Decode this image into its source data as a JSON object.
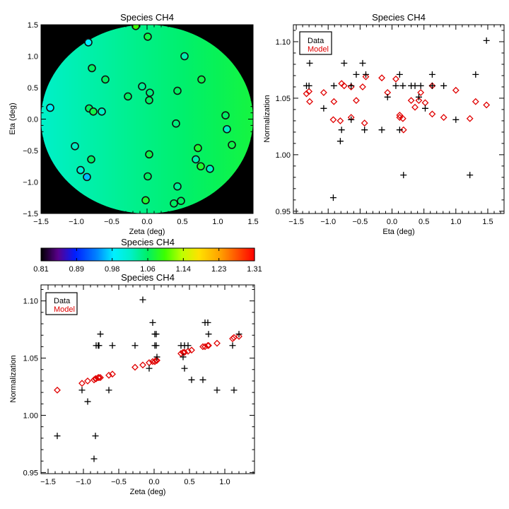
{
  "chart_data": [
    {
      "type": "scatter",
      "id": "map",
      "title": "Species CH4",
      "xlabel": "Zeta (deg)",
      "ylabel": "Eta (deg)",
      "xlim": [
        -1.5,
        1.5
      ],
      "ylim": [
        -1.5,
        1.5
      ],
      "xticks": [
        -1.5,
        -1.0,
        -0.5,
        0.0,
        0.5,
        1.0,
        1.5
      ],
      "yticks": [
        -1.5,
        -1.0,
        -0.5,
        0.0,
        0.5,
        1.0,
        1.5
      ],
      "background": "model surface, field radius 1.5 deg, black outside",
      "points": [
        {
          "zeta": -0.16,
          "eta": 1.48,
          "data": 1.101,
          "model": 1.044
        },
        {
          "zeta": 0.01,
          "eta": 1.31,
          "data": 1.071,
          "model": 1.047
        },
        {
          "zeta": -0.83,
          "eta": 1.22,
          "data": 0.982,
          "model": 1.032
        },
        {
          "zeta": 0.53,
          "eta": 1.0,
          "data": 1.031,
          "model": 1.057
        },
        {
          "zeta": -0.78,
          "eta": 0.81,
          "data": 1.061,
          "model": 1.033
        },
        {
          "zeta": -0.59,
          "eta": 0.63,
          "data": 1.061,
          "model": 1.036
        },
        {
          "zeta": 0.77,
          "eta": 0.63,
          "data": 1.071,
          "model": 1.061
        },
        {
          "zeta": -0.07,
          "eta": 0.52,
          "data": 1.041,
          "model": 1.046
        },
        {
          "zeta": 0.04,
          "eta": 0.42,
          "data": 1.051,
          "model": 1.048
        },
        {
          "zeta": -0.27,
          "eta": 0.36,
          "data": 1.061,
          "model": 1.042
        },
        {
          "zeta": 0.43,
          "eta": 0.45,
          "data": 1.061,
          "model": 1.055
        },
        {
          "zeta": 0.03,
          "eta": 0.3,
          "data": 1.061,
          "model": 1.048
        },
        {
          "zeta": -1.37,
          "eta": 0.18,
          "data": 0.982,
          "model": 1.022
        },
        {
          "zeta": -0.82,
          "eta": 0.17,
          "data": 1.061,
          "model": 1.032
        },
        {
          "zeta": -0.76,
          "eta": 0.12,
          "data": 1.071,
          "model": 1.033
        },
        {
          "zeta": -0.64,
          "eta": 0.12,
          "data": 1.022,
          "model": 1.035
        },
        {
          "zeta": 1.11,
          "eta": 0.06,
          "data": 1.061,
          "model": 1.067
        },
        {
          "zeta": 0.41,
          "eta": -0.07,
          "data": 1.051,
          "model": 1.055
        },
        {
          "zeta": 1.13,
          "eta": -0.16,
          "data": 1.022,
          "model": 1.068
        },
        {
          "zeta": -1.02,
          "eta": -0.43,
          "data": 1.022,
          "model": 1.028
        },
        {
          "zeta": 1.2,
          "eta": -0.41,
          "data": 1.071,
          "model": 1.069
        },
        {
          "zeta": 0.72,
          "eta": -0.46,
          "data": 1.081,
          "model": 1.06
        },
        {
          "zeta": -0.79,
          "eta": -0.64,
          "data": 1.061,
          "model": 1.033
        },
        {
          "zeta": 0.03,
          "eta": -0.56,
          "data": 1.071,
          "model": 1.048
        },
        {
          "zeta": 0.69,
          "eta": -0.64,
          "data": 1.031,
          "model": 1.06
        },
        {
          "zeta": 0.76,
          "eta": -0.75,
          "data": 1.081,
          "model": 1.061
        },
        {
          "zeta": 0.89,
          "eta": -0.79,
          "data": 1.022,
          "model": 1.063
        },
        {
          "zeta": -0.94,
          "eta": -0.81,
          "data": 1.012,
          "model": 1.03
        },
        {
          "zeta": -0.85,
          "eta": -0.92,
          "data": 0.962,
          "model": 1.031
        },
        {
          "zeta": 0.01,
          "eta": -0.91,
          "data": 1.061,
          "model": 1.047
        },
        {
          "zeta": 0.43,
          "eta": -1.07,
          "data": 1.041,
          "model": 1.055
        },
        {
          "zeta": -0.02,
          "eta": -1.29,
          "data": 1.081,
          "model": 1.047
        },
        {
          "zeta": 0.38,
          "eta": -1.34,
          "data": 1.061,
          "model": 1.054
        },
        {
          "zeta": 0.48,
          "eta": -1.3,
          "data": 1.061,
          "model": 1.056
        }
      ]
    },
    {
      "type": "colorbar",
      "id": "colorbar",
      "title": "Species CH4",
      "range": [
        0.81,
        1.31
      ],
      "tick_labels": [
        "0.81",
        "0.89",
        "0.98",
        "1.06",
        "1.14",
        "1.23",
        "1.31"
      ]
    },
    {
      "type": "scatter",
      "id": "vs_eta",
      "title": "Species CH4",
      "xlabel": "Eta (deg)",
      "ylabel": "Normalization",
      "x_field": "eta",
      "xlim": [
        -1.545,
        1.755
      ],
      "ylim": [
        0.948,
        1.115
      ],
      "xticks": [
        -1.5,
        -1.0,
        -0.5,
        0.0,
        0.5,
        1.0,
        1.5
      ],
      "yticks": [
        0.95,
        1.0,
        1.05,
        1.1
      ],
      "legend": {
        "position": "top-left",
        "entries": [
          {
            "label": "Data",
            "color": "#000000",
            "marker": "plus"
          },
          {
            "label": "Model",
            "color": "#e00000",
            "marker": "diamond"
          }
        ]
      }
    },
    {
      "type": "scatter",
      "id": "vs_zeta",
      "title": "Species CH4",
      "xlabel": "Zeta (deg)",
      "ylabel": "Normalization",
      "x_field": "zeta",
      "xlim": [
        -1.6,
        1.42
      ],
      "ylim": [
        0.949,
        1.114
      ],
      "xticks": [
        -1.5,
        -1.0,
        -0.5,
        0.0,
        0.5,
        1.0
      ],
      "yticks": [
        0.95,
        1.0,
        1.05,
        1.1
      ],
      "legend": {
        "position": "top-left",
        "entries": [
          {
            "label": "Data",
            "color": "#000000",
            "marker": "plus"
          },
          {
            "label": "Model",
            "color": "#e00000",
            "marker": "diamond"
          }
        ]
      }
    }
  ]
}
